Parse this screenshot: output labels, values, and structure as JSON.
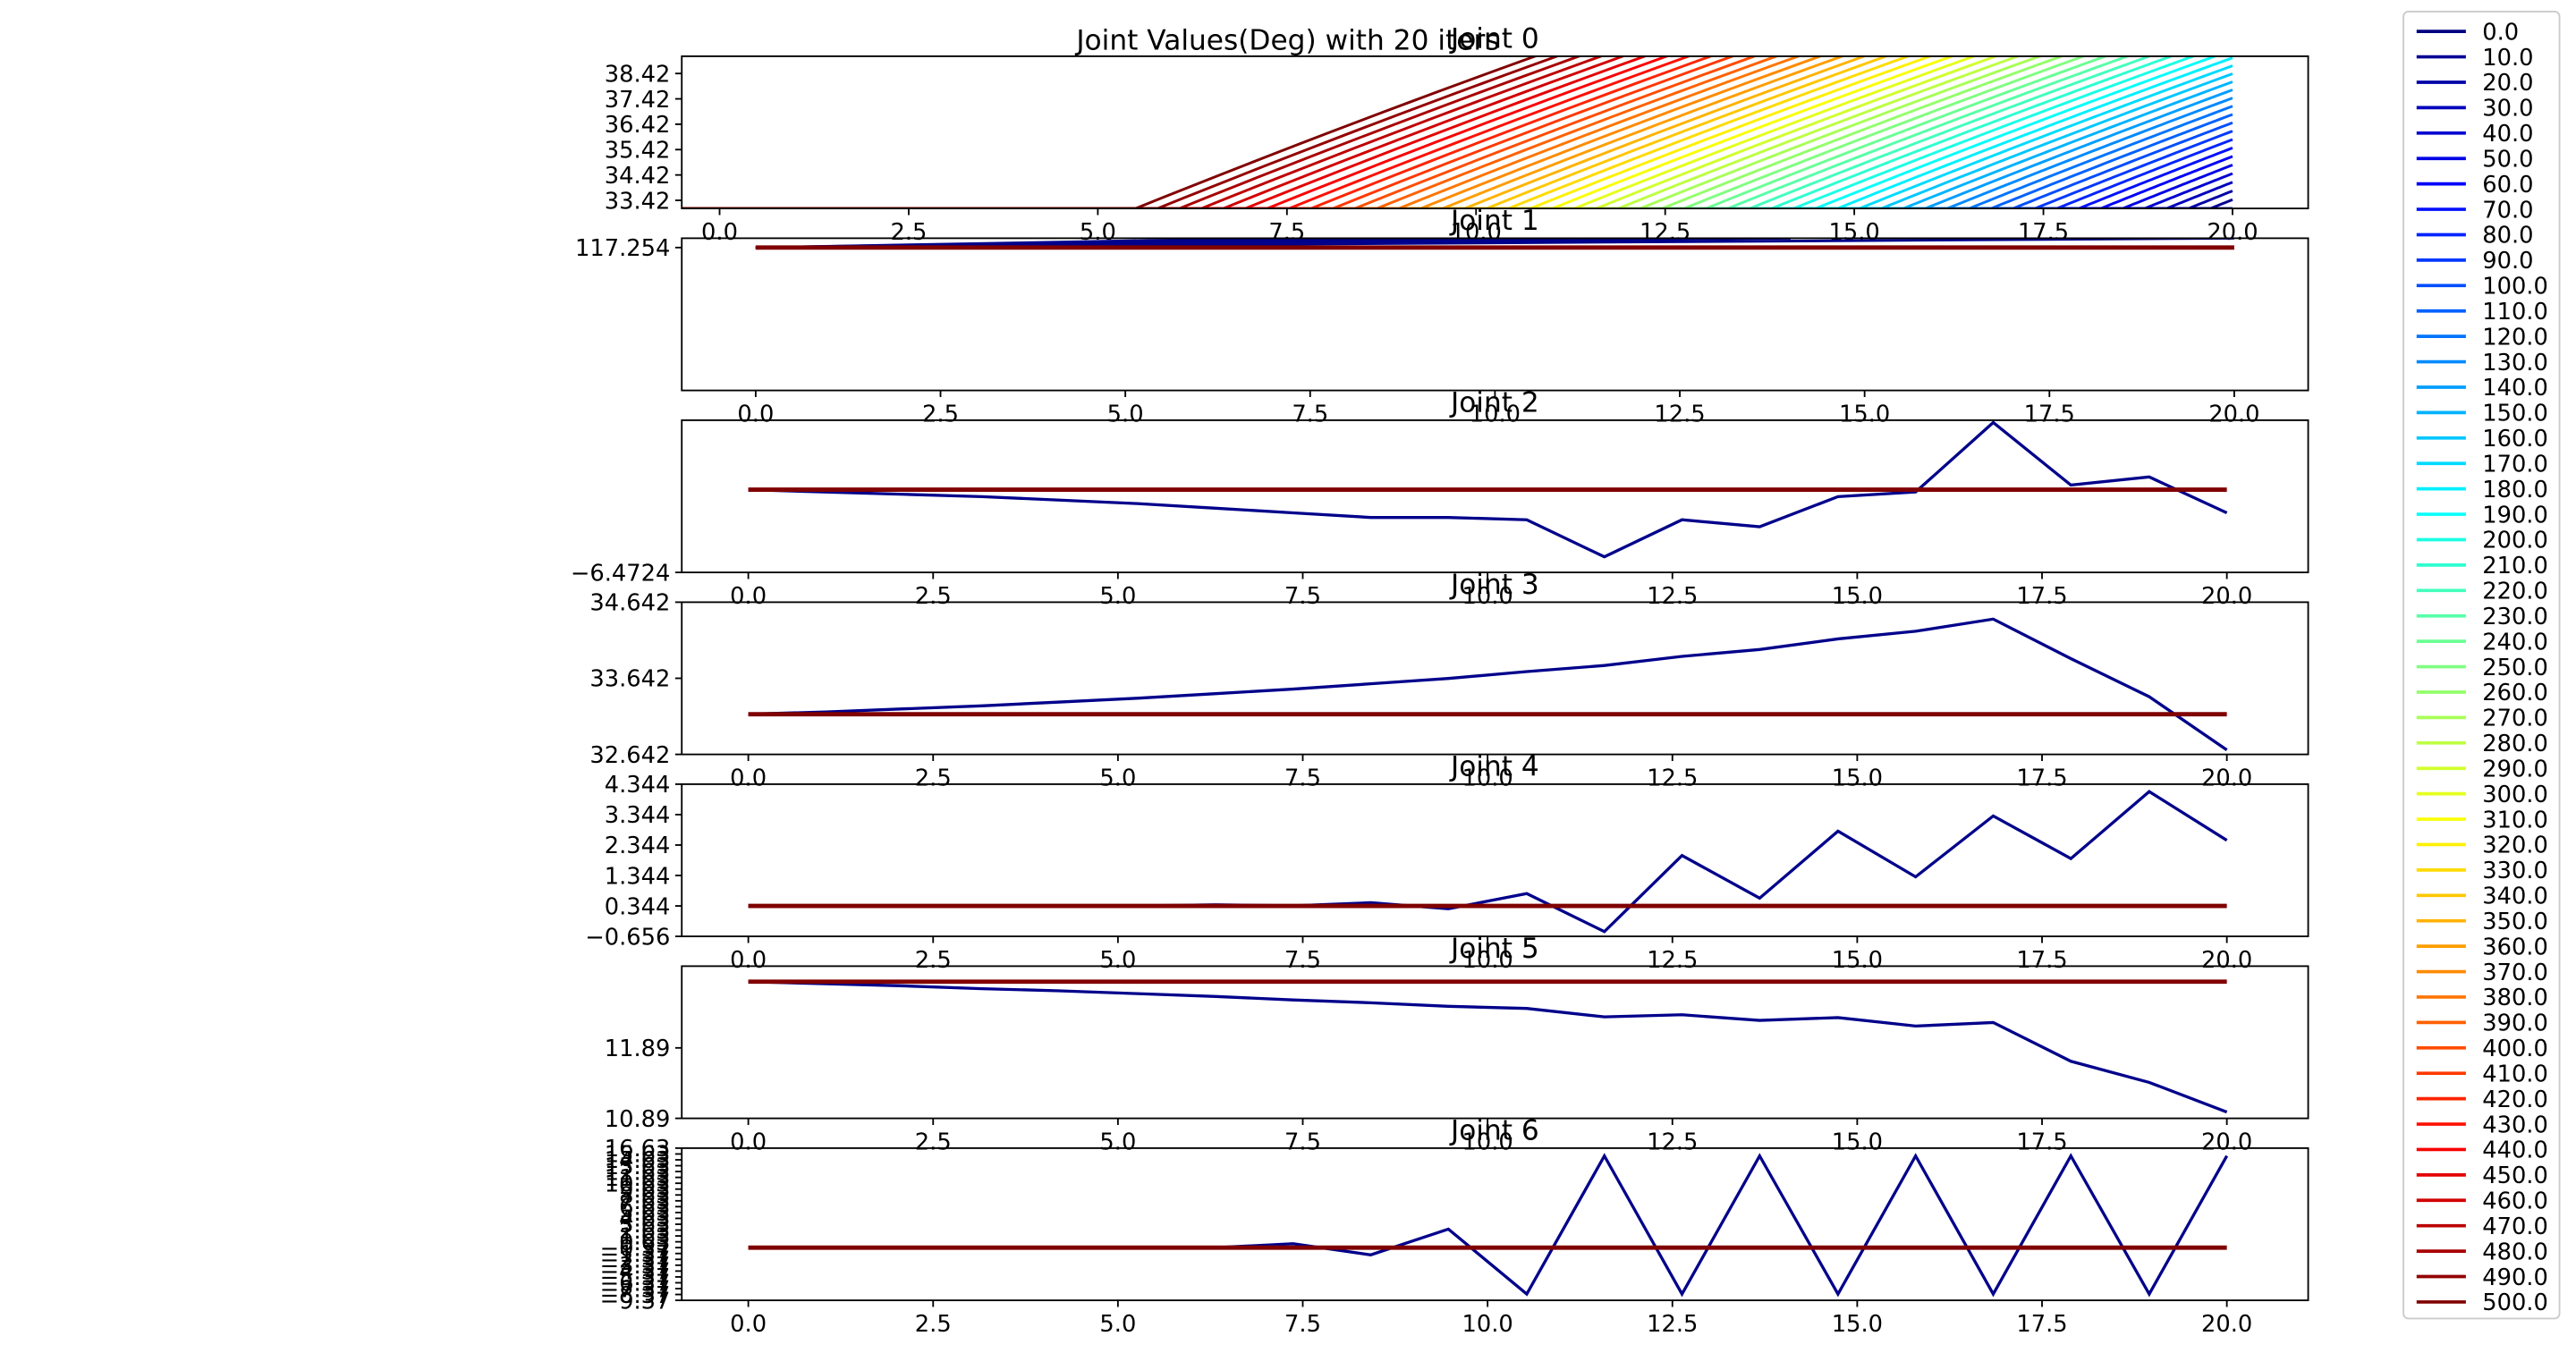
{
  "figure": {
    "suptitle": "Joint Values(Deg) with 20 iters"
  },
  "legend": {
    "placement": "right-outside",
    "entries": [
      "0.0",
      "10.0",
      "20.0",
      "30.0",
      "40.0",
      "50.0",
      "60.0",
      "70.0",
      "80.0",
      "90.0",
      "100.0",
      "110.0",
      "120.0",
      "130.0",
      "140.0",
      "150.0",
      "160.0",
      "170.0",
      "180.0",
      "190.0",
      "200.0",
      "210.0",
      "220.0",
      "230.0",
      "240.0",
      "250.0",
      "260.0",
      "270.0",
      "280.0",
      "290.0",
      "300.0",
      "310.0",
      "320.0",
      "330.0",
      "340.0",
      "350.0",
      "360.0",
      "370.0",
      "380.0",
      "390.0",
      "400.0",
      "410.0",
      "420.0",
      "430.0",
      "440.0",
      "450.0",
      "460.0",
      "470.0",
      "480.0",
      "490.0",
      "500.0"
    ],
    "colormap": "jet"
  },
  "chart_data": [
    {
      "type": "line",
      "title": "Joint 0",
      "xlim": [
        -0.5,
        21
      ],
      "ylim": [
        33.1,
        39.1
      ],
      "xticks": [
        0,
        2.5,
        5,
        7.5,
        10,
        12.5,
        15,
        17.5,
        20
      ],
      "xtick_labels": [
        "0.0",
        "2.5",
        "5.0",
        "7.5",
        "10.0",
        "12.5",
        "15.0",
        "17.5",
        "20.0"
      ],
      "yticks": [
        33.42,
        34.42,
        35.42,
        36.42,
        37.42,
        38.42
      ],
      "ytick_labels": [
        "33.42",
        "34.42",
        "35.42",
        "36.42",
        "37.42",
        "38.42"
      ],
      "series_family": {
        "count": 51,
        "y_base": 33.1,
        "slope": 1.2,
        "start_x_first": 20,
        "start_x_last": 5.5
      }
    },
    {
      "type": "line",
      "title": "Joint 1",
      "xlim": [
        -1,
        21
      ],
      "ylim": [
        116.55,
        117.3
      ],
      "xticks": [
        0,
        2.5,
        5,
        7.5,
        10,
        12.5,
        15,
        17.5,
        20
      ],
      "xtick_labels": [
        "0.0",
        "2.5",
        "5.0",
        "7.5",
        "10.0",
        "12.5",
        "15.0",
        "17.5",
        "20.0"
      ],
      "yticks": [
        117.254
      ],
      "ytick_labels": [
        "117.254"
      ],
      "flat_value": 117.254,
      "x": [
        0,
        20
      ],
      "fan_endpoints_x": [
        20,
        14,
        11,
        9,
        8,
        7
      ],
      "fan_top": 117.3
    },
    {
      "type": "line",
      "title": "Joint 2",
      "xlim": [
        -0.9,
        21.1
      ],
      "ylim": [
        -6.4724,
        0.1
      ],
      "xticks": [
        0,
        2.5,
        5,
        7.5,
        10,
        12.5,
        15,
        17.5,
        20
      ],
      "xtick_labels": [
        "0.0",
        "2.5",
        "5.0",
        "7.5",
        "10.0",
        "12.5",
        "15.0",
        "17.5",
        "20.0"
      ],
      "yticks": [
        -6.4724
      ],
      "ytick_labels": [
        "−6.4724"
      ],
      "flat_value": -2.9,
      "x": [
        0,
        1.05,
        2.1,
        3.16,
        4.21,
        5.26,
        6.32,
        7.37,
        8.42,
        9.47,
        10.53,
        11.58,
        12.63,
        13.68,
        14.74,
        15.79,
        16.84,
        17.89,
        18.95,
        20
      ],
      "values": [
        -2.9,
        -3.0,
        -3.1,
        -3.2,
        -3.35,
        -3.5,
        -3.7,
        -3.9,
        -4.1,
        -4.1,
        -4.2,
        -5.8,
        -4.2,
        -4.5,
        -3.2,
        -3.0,
        0.0,
        -2.7,
        -2.35,
        -3.9
      ]
    },
    {
      "type": "line",
      "title": "Joint 3",
      "xlim": [
        -0.9,
        21.1
      ],
      "ylim": [
        32.642,
        34.642
      ],
      "xticks": [
        0,
        2.5,
        5,
        7.5,
        10,
        12.5,
        15,
        17.5,
        20
      ],
      "xtick_labels": [
        "0.0",
        "2.5",
        "5.0",
        "7.5",
        "10.0",
        "12.5",
        "15.0",
        "17.5",
        "20.0"
      ],
      "yticks": [
        32.642,
        33.642,
        34.642
      ],
      "ytick_labels": [
        "32.642",
        "33.642",
        "34.642"
      ],
      "flat_value": 33.17,
      "x": [
        0,
        1.05,
        2.1,
        3.16,
        4.21,
        5.26,
        6.32,
        7.37,
        8.42,
        9.47,
        10.53,
        11.58,
        12.63,
        13.68,
        14.74,
        15.79,
        16.84,
        17.89,
        18.95,
        20
      ],
      "values": [
        33.17,
        33.2,
        33.24,
        33.28,
        33.33,
        33.38,
        33.44,
        33.5,
        33.57,
        33.64,
        33.73,
        33.81,
        33.93,
        34.02,
        34.16,
        34.26,
        34.42,
        33.9,
        33.4,
        32.7
      ]
    },
    {
      "type": "line",
      "title": "Joint 4",
      "xlim": [
        -0.9,
        21.1
      ],
      "ylim": [
        -0.656,
        4.344
      ],
      "xticks": [
        0,
        2.5,
        5,
        7.5,
        10,
        12.5,
        15,
        17.5,
        20
      ],
      "xtick_labels": [
        "0.0",
        "2.5",
        "5.0",
        "7.5",
        "10.0",
        "12.5",
        "15.0",
        "17.5",
        "20.0"
      ],
      "yticks": [
        -0.656,
        0.344,
        1.344,
        2.344,
        3.344,
        4.344
      ],
      "ytick_labels": [
        "−0.656",
        "0.344",
        "1.344",
        "2.344",
        "3.344",
        "4.344"
      ],
      "flat_value": 0.344,
      "x": [
        0,
        1.05,
        2.1,
        3.16,
        4.21,
        5.26,
        6.32,
        7.37,
        8.42,
        9.47,
        10.53,
        11.58,
        12.63,
        13.68,
        14.74,
        15.79,
        16.84,
        17.89,
        18.95,
        20
      ],
      "values": [
        0.344,
        0.344,
        0.344,
        0.344,
        0.344,
        0.344,
        0.38,
        0.35,
        0.45,
        0.25,
        0.75,
        -0.5,
        2.0,
        0.6,
        2.8,
        1.3,
        3.3,
        1.9,
        4.1,
        2.5
      ]
    },
    {
      "type": "line",
      "title": "Joint 5",
      "xlim": [
        -0.9,
        21.1
      ],
      "ylim": [
        10.89,
        13.05
      ],
      "xticks": [
        0,
        2.5,
        5,
        7.5,
        10,
        12.5,
        15,
        17.5,
        20
      ],
      "xtick_labels": [
        "0.0",
        "2.5",
        "5.0",
        "7.5",
        "10.0",
        "12.5",
        "15.0",
        "17.5",
        "20.0"
      ],
      "yticks": [
        10.89,
        11.89
      ],
      "ytick_labels": [
        "10.89",
        "11.89"
      ],
      "flat_value": 12.83,
      "x": [
        0,
        1.05,
        2.1,
        3.16,
        4.21,
        5.26,
        6.32,
        7.37,
        8.42,
        9.47,
        10.53,
        11.58,
        12.63,
        13.68,
        14.74,
        15.79,
        16.84,
        17.89,
        18.95,
        20
      ],
      "values": [
        12.83,
        12.8,
        12.77,
        12.73,
        12.7,
        12.66,
        12.62,
        12.57,
        12.53,
        12.48,
        12.45,
        12.33,
        12.36,
        12.28,
        12.32,
        12.2,
        12.25,
        11.7,
        11.4,
        10.98
      ]
    },
    {
      "type": "line",
      "title": "Joint 6",
      "xlim": [
        -0.9,
        21.1
      ],
      "ylim": [
        -9.37,
        16.63
      ],
      "xticks": [
        0,
        2.5,
        5,
        7.5,
        10,
        12.5,
        15,
        17.5,
        20
      ],
      "xtick_labels": [
        "0.0",
        "2.5",
        "5.0",
        "7.5",
        "10.0",
        "12.5",
        "15.0",
        "17.5",
        "20.0"
      ],
      "yticks": [
        -9.37,
        -8.37,
        -7.37,
        -6.37,
        -5.37,
        -4.37,
        -3.37,
        -2.37,
        -1.37,
        -0.37,
        0.63,
        1.63,
        2.63,
        3.63,
        4.63,
        5.63,
        6.63,
        7.63,
        8.63,
        9.63,
        10.63,
        11.63,
        12.63,
        13.63,
        14.63,
        15.63,
        16.63
      ],
      "ytick_labels": [
        "−9.37",
        "−8.37",
        "−7.37",
        "−6.37",
        "−5.37",
        "−4.37",
        "−3.37",
        "−2.37",
        "−1.37",
        "−0.37",
        "0.63",
        "1.63",
        "2.63",
        "3.63",
        "4.63",
        "5.63",
        "6.63",
        "7.63",
        "8.63",
        "9.63",
        "10.63",
        "11.63",
        "12.63",
        "13.63",
        "14.63",
        "15.63",
        "16.63"
      ],
      "flat_value": -0.37,
      "x": [
        0,
        1.05,
        2.1,
        3.16,
        4.21,
        5.26,
        6.32,
        7.37,
        8.42,
        9.47,
        10.53,
        11.58,
        12.63,
        13.68,
        14.74,
        15.79,
        16.84,
        17.89,
        18.95,
        20
      ],
      "values": [
        -0.37,
        -0.37,
        -0.37,
        -0.37,
        -0.37,
        -0.37,
        -0.37,
        0.3,
        -1.6,
        2.8,
        -8.3,
        15.3,
        -8.3,
        15.3,
        -8.3,
        15.3,
        -8.3,
        15.3,
        -8.3,
        15.3
      ]
    }
  ]
}
